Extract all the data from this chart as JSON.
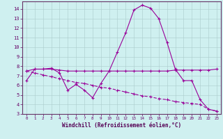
{
  "x": [
    0,
    1,
    2,
    3,
    4,
    5,
    6,
    7,
    8,
    9,
    10,
    11,
    12,
    13,
    14,
    15,
    16,
    17,
    18,
    19,
    20,
    21,
    22,
    23
  ],
  "line1": [
    6.5,
    7.7,
    7.7,
    7.8,
    7.3,
    5.5,
    6.1,
    5.5,
    4.7,
    6.2,
    7.5,
    9.5,
    11.5,
    13.9,
    14.4,
    14.1,
    13.0,
    10.5,
    7.7,
    6.5,
    6.5,
    4.5,
    3.5,
    3.3
  ],
  "line2": [
    7.5,
    7.7,
    7.7,
    7.7,
    7.6,
    7.5,
    7.5,
    7.5,
    7.5,
    7.5,
    7.5,
    7.5,
    7.5,
    7.5,
    7.5,
    7.5,
    7.5,
    7.5,
    7.6,
    7.6,
    7.6,
    7.6,
    7.6,
    7.7
  ],
  "line3": [
    7.5,
    7.3,
    7.1,
    6.9,
    6.7,
    6.5,
    6.3,
    6.2,
    6.0,
    5.8,
    5.7,
    5.5,
    5.3,
    5.1,
    4.9,
    4.8,
    4.6,
    4.5,
    4.3,
    4.2,
    4.1,
    4.0,
    3.5,
    3.3
  ],
  "line_color": "#990099",
  "bg_color": "#cff0f0",
  "grid_color": "#aacccc",
  "xlabel": "Windchill (Refroidissement éolien,°C)",
  "ylim_min": 3,
  "ylim_max": 14.8,
  "xlim_min": -0.5,
  "xlim_max": 23.5,
  "yticks": [
    3,
    4,
    5,
    6,
    7,
    8,
    9,
    10,
    11,
    12,
    13,
    14
  ],
  "xticks": [
    0,
    1,
    2,
    3,
    4,
    5,
    6,
    7,
    8,
    9,
    10,
    11,
    12,
    13,
    14,
    15,
    16,
    17,
    18,
    19,
    20,
    21,
    22,
    23
  ]
}
